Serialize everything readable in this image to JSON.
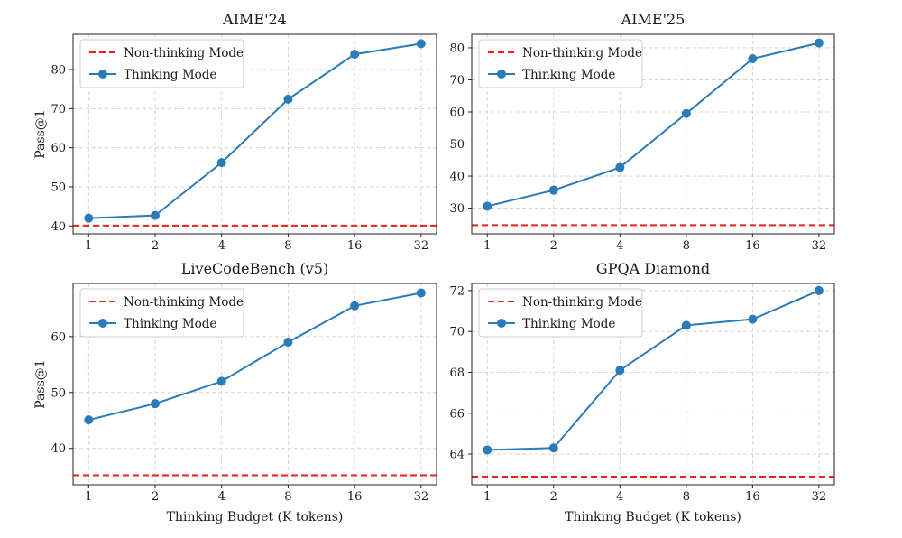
{
  "chart_data": [
    {
      "type": "line",
      "title": "AIME'24",
      "xlabel": "",
      "ylabel": "Pass@1",
      "x": [
        1,
        2,
        4,
        8,
        16,
        32
      ],
      "x_tick_labels": [
        "1",
        "2",
        "4",
        "8",
        "16",
        "32"
      ],
      "xscale": "log2",
      "xlim": [
        0.85,
        37.6
      ],
      "ylim": [
        38.0,
        89.0
      ],
      "y_ticks": [
        40,
        50,
        60,
        70,
        80
      ],
      "y_tick_labels": [
        "40",
        "50",
        "60",
        "70",
        "80"
      ],
      "series": [
        {
          "name": "Non-thinking Mode",
          "style": "dashed-hline",
          "color": "#e8231a",
          "value": 40.1
        },
        {
          "name": "Thinking Mode",
          "style": "line-marker",
          "color": "#2b7bb9",
          "values": [
            42.0,
            42.7,
            56.2,
            72.4,
            83.9,
            86.6
          ]
        }
      ],
      "grid": true,
      "legend": "upper-left"
    },
    {
      "type": "line",
      "title": "AIME'25",
      "xlabel": "",
      "ylabel": "",
      "x": [
        1,
        2,
        4,
        8,
        16,
        32
      ],
      "x_tick_labels": [
        "1",
        "2",
        "4",
        "8",
        "16",
        "32"
      ],
      "xscale": "log2",
      "xlim": [
        0.85,
        37.6
      ],
      "ylim": [
        22.0,
        84.2
      ],
      "y_ticks": [
        30,
        40,
        50,
        60,
        70,
        80
      ],
      "y_tick_labels": [
        "30",
        "40",
        "50",
        "60",
        "70",
        "80"
      ],
      "series": [
        {
          "name": "Non-thinking Mode",
          "style": "dashed-hline",
          "color": "#e8231a",
          "value": 24.7
        },
        {
          "name": "Thinking Mode",
          "style": "line-marker",
          "color": "#2b7bb9",
          "values": [
            30.6,
            35.6,
            42.7,
            59.5,
            76.6,
            81.5
          ]
        }
      ],
      "grid": true,
      "legend": "upper-left"
    },
    {
      "type": "line",
      "title": "LiveCodeBench (v5)",
      "xlabel": "Thinking Budget (K tokens)",
      "ylabel": "Pass@1",
      "x": [
        1,
        2,
        4,
        8,
        16,
        32
      ],
      "x_tick_labels": [
        "1",
        "2",
        "4",
        "8",
        "16",
        "32"
      ],
      "xscale": "log2",
      "xlim": [
        0.85,
        37.6
      ],
      "ylim": [
        33.5,
        69.5
      ],
      "y_ticks": [
        40,
        50,
        60
      ],
      "y_tick_labels": [
        "40",
        "50",
        "60"
      ],
      "series": [
        {
          "name": "Non-thinking Mode",
          "style": "dashed-hline",
          "color": "#e8231a",
          "value": 35.2
        },
        {
          "name": "Thinking Mode",
          "style": "line-marker",
          "color": "#2b7bb9",
          "values": [
            45.1,
            48.0,
            52.0,
            59.0,
            65.5,
            67.8
          ]
        }
      ],
      "grid": true,
      "legend": "upper-left"
    },
    {
      "type": "line",
      "title": "GPQA Diamond",
      "xlabel": "Thinking Budget (K tokens)",
      "ylabel": "",
      "x": [
        1,
        2,
        4,
        8,
        16,
        32
      ],
      "x_tick_labels": [
        "1",
        "2",
        "4",
        "8",
        "16",
        "32"
      ],
      "xscale": "log2",
      "xlim": [
        0.85,
        37.6
      ],
      "ylim": [
        62.5,
        72.35
      ],
      "y_ticks": [
        64,
        66,
        68,
        70,
        72
      ],
      "y_tick_labels": [
        "64",
        "66",
        "68",
        "70",
        "72"
      ],
      "series": [
        {
          "name": "Non-thinking Mode",
          "style": "dashed-hline",
          "color": "#e8231a",
          "value": 62.9
        },
        {
          "name": "Thinking Mode",
          "style": "line-marker",
          "color": "#2b7bb9",
          "values": [
            64.2,
            64.3,
            68.1,
            70.3,
            70.6,
            72.0
          ]
        }
      ],
      "grid": true,
      "legend": "upper-left"
    }
  ]
}
